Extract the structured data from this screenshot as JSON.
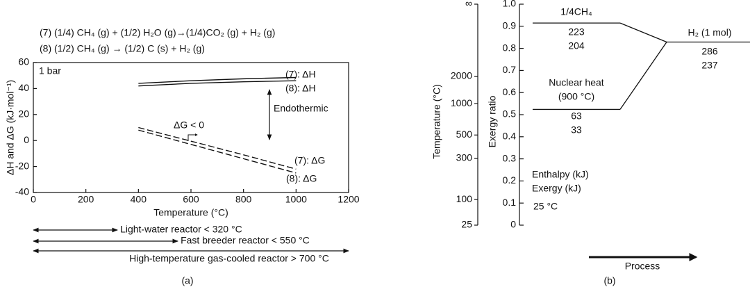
{
  "chart_data": [
    {
      "type": "line",
      "equations": [
        "(7) (1/4) CH₄ (g) + (1/2) H₂O (g)→(1/4)CO₂ (g) + H₂ (g)",
        "(8) (1/2) CH₄ (g) → (1/2) C (s) + H₂ (g)"
      ],
      "xlabel": "Temperature (°C)",
      "ylabel": "ΔH and ΔG (kJ·mol⁻¹)",
      "xlim": [
        0,
        1200
      ],
      "ylim": [
        -40,
        60
      ],
      "xticks": [
        0,
        200,
        400,
        600,
        800,
        1000,
        1200
      ],
      "yticks": [
        -40,
        -20,
        0,
        20,
        40,
        60
      ],
      "x": [
        400,
        600,
        800,
        1000
      ],
      "series": [
        {
          "name": "(7): ΔH",
          "color": "#111111",
          "dash": "solid",
          "values": [
            44,
            46,
            47.5,
            48.5
          ]
        },
        {
          "name": "(8): ΔH",
          "color": "#111111",
          "dash": "solid",
          "values": [
            42,
            44,
            45.2,
            46
          ]
        },
        {
          "name": "(7): ΔG",
          "color": "#111111",
          "dash": "dashed",
          "values": [
            10,
            -0.5,
            -11,
            -22
          ]
        },
        {
          "name": "(8): ΔG",
          "color": "#111111",
          "dash": "dashed",
          "values": [
            8,
            -3,
            -14,
            -25
          ]
        }
      ],
      "pressure_note": "1 bar",
      "endothermic_note": "Endothermic",
      "dg_note": "ΔG < 0",
      "reactors": [
        {
          "label": "Light-water reactor < 320 °C",
          "xrange": [
            0,
            320
          ]
        },
        {
          "label": "Fast breeder reactor < 550 °C",
          "xrange": [
            0,
            550
          ]
        },
        {
          "label": "High-temperature gas-cooled reactor > 700 °C",
          "xrange": [
            0,
            1200
          ]
        }
      ],
      "panel": "(a)"
    },
    {
      "type": "energy-diagram",
      "ylabel": "Exergy ratio",
      "ylim": [
        0,
        1
      ],
      "yticks": [
        0,
        0.1,
        0.2,
        0.3,
        0.4,
        0.5,
        0.6,
        0.7,
        0.8,
        0.9,
        {
          "value": 1,
          "label": "1.0"
        }
      ],
      "y2label": "Temperature (°C)",
      "y2ticks": [
        25,
        100,
        300,
        500,
        1000,
        2000,
        {
          "value": null,
          "label": "∞"
        }
      ],
      "levels": [
        {
          "name": "1/4CH₄",
          "enthalpy": 223,
          "exergy": 204
        },
        {
          "name": "Nuclear heat",
          "condition": "(900 °C)",
          "enthalpy": 63,
          "exergy": 33
        },
        {
          "name": "H₂ (1 mol)",
          "enthalpy": 286,
          "exergy": 237
        }
      ],
      "enthalpy_label": "Enthalpy (kJ)",
      "enthalpy_color": "#e3262b",
      "exergy_label": "Exergy (kJ)",
      "exergy_color": "#17994a",
      "reference": "25 °C",
      "xlabel": "Process",
      "panel": "(b)"
    }
  ]
}
